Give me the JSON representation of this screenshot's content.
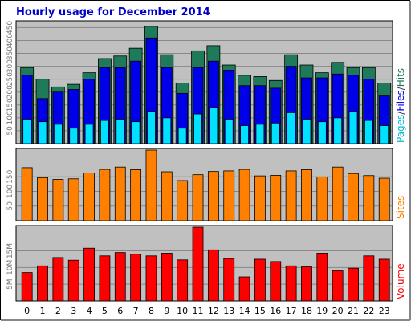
{
  "window": {
    "title": "Hourly usage for December 2014"
  },
  "colors": {
    "hits": "#1f7a5a",
    "files": "#0000e8",
    "pages": "#00e0ff",
    "sites": "#ff8000",
    "volume": "#ff0000",
    "title": "#0000c8",
    "panel_bg": "#c0c0c0",
    "grid": "#888888"
  },
  "legend": {
    "pages": "Pages",
    "files": "Files",
    "hits": "Hits",
    "sep1": "/",
    "sep2": "/",
    "sites": "Sites",
    "volume": "Volume"
  },
  "chart_data": [
    {
      "type": "bar",
      "title": "Hourly usage for December 2014",
      "categories": [
        "0",
        "1",
        "2",
        "3",
        "4",
        "5",
        "6",
        "7",
        "8",
        "9",
        "10",
        "11",
        "12",
        "13",
        "14",
        "15",
        "16",
        "17",
        "18",
        "19",
        "20",
        "21",
        "22",
        "23"
      ],
      "ylim": [
        0,
        470
      ],
      "yticks": [
        "50",
        "100",
        "150",
        "200",
        "250",
        "300",
        "350",
        "400",
        "450"
      ],
      "series": [
        {
          "name": "Hits",
          "values": [
            295,
            250,
            220,
            230,
            275,
            330,
            340,
            370,
            455,
            345,
            235,
            360,
            380,
            305,
            265,
            260,
            245,
            345,
            305,
            275,
            315,
            295,
            295,
            235
          ]
        },
        {
          "name": "Files",
          "values": [
            265,
            175,
            200,
            210,
            250,
            295,
            295,
            320,
            410,
            295,
            195,
            295,
            320,
            285,
            225,
            225,
            215,
            300,
            255,
            255,
            270,
            265,
            250,
            185
          ]
        },
        {
          "name": "Pages",
          "values": [
            95,
            85,
            75,
            60,
            75,
            90,
            95,
            85,
            125,
            100,
            60,
            115,
            140,
            95,
            70,
            75,
            80,
            120,
            95,
            85,
            100,
            125,
            90,
            70
          ]
        }
      ]
    },
    {
      "type": "bar",
      "categories": [
        "0",
        "1",
        "2",
        "3",
        "4",
        "5",
        "6",
        "7",
        "8",
        "9",
        "10",
        "11",
        "12",
        "13",
        "14",
        "15",
        "16",
        "17",
        "18",
        "19",
        "20",
        "21",
        "22",
        "23"
      ],
      "ylim": [
        0,
        241
      ],
      "yticks": [
        "50",
        "100",
        "150"
      ],
      "series": [
        {
          "name": "Sites",
          "values": [
            181,
            147,
            141,
            143,
            163,
            175,
            183,
            174,
            241,
            167,
            137,
            157,
            168,
            170,
            175,
            153,
            155,
            170,
            174,
            149,
            183,
            161,
            154,
            145
          ]
        }
      ]
    },
    {
      "type": "bar",
      "categories": [
        "0",
        "1",
        "2",
        "3",
        "4",
        "5",
        "6",
        "7",
        "8",
        "9",
        "10",
        "11",
        "12",
        "13",
        "14",
        "15",
        "16",
        "17",
        "18",
        "19",
        "20",
        "21",
        "22",
        "23"
      ],
      "ylim": [
        0,
        22.1
      ],
      "yticks": [
        "5M",
        "10M",
        "15M"
      ],
      "series": [
        {
          "name": "Volume",
          "values": [
            8.5,
            10.5,
            13.0,
            12.2,
            15.8,
            13.5,
            14.5,
            14.0,
            13.5,
            14.3,
            12.3,
            22.1,
            15.3,
            12.7,
            7.2,
            12.5,
            11.8,
            10.5,
            10.2,
            14.3,
            9.0,
            9.8,
            13.5,
            12.5
          ]
        }
      ]
    }
  ]
}
